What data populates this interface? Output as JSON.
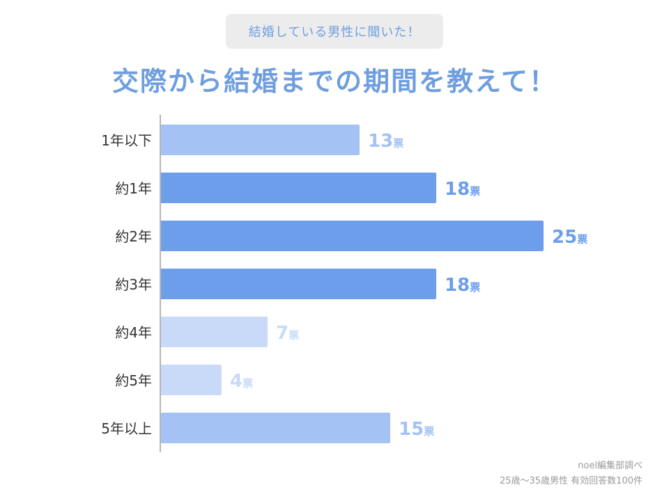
{
  "header": {
    "subtitle": "結婚している男性に聞いた！",
    "title": "交際から結婚までの期間を教えて！"
  },
  "footer": {
    "source": "noel編集部調べ",
    "sample": "25歳〜35歳男性 有効回答数100件"
  },
  "chart_data": {
    "type": "bar",
    "orientation": "horizontal",
    "categories": [
      "1年以下",
      "約1年",
      "約2年",
      "約3年",
      "約4年",
      "約5年",
      "5年以上"
    ],
    "values": [
      13,
      18,
      25,
      18,
      7,
      4,
      15
    ],
    "value_unit": "票",
    "bar_colors": [
      "#a4c2f4",
      "#6d9eeb",
      "#6d9eeb",
      "#6d9eeb",
      "#c9daf8",
      "#c9daf8",
      "#a4c2f4"
    ],
    "label_colors": [
      "#a4c2f4",
      "#6d9eeb",
      "#6d9eeb",
      "#6d9eeb",
      "#c9daf8",
      "#c9daf8",
      "#a4c2f4"
    ],
    "xlim": [
      0,
      25
    ],
    "grid": false,
    "legend": "none"
  }
}
